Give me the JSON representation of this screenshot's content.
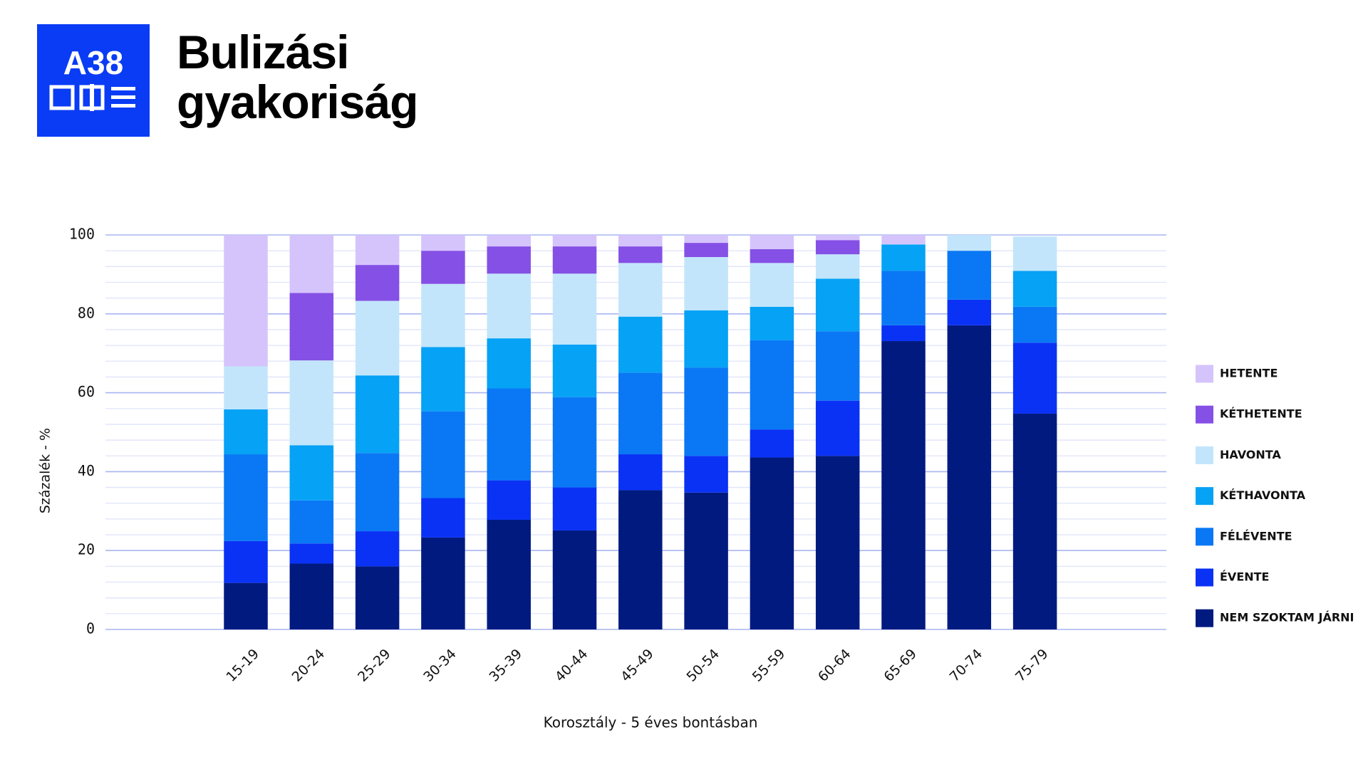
{
  "logo": "A38",
  "chart_data": {
    "type": "stacked_bar",
    "title": "Bulizási gyakoriság",
    "xlabel": "Korosztály - 5 éves bontásban",
    "ylabel": "Százalék - %",
    "categories": [
      "15-19",
      "20-24",
      "25-29",
      "30-34",
      "35-39",
      "40-44",
      "45-49",
      "50-54",
      "55-59",
      "60-64",
      "65-69",
      "70-74",
      "75-79"
    ],
    "series": [
      {
        "name": "NEM SZOKTAM JÁRNI",
        "color": "#001a80",
        "values": [
          11.8,
          16.7,
          16,
          23.3,
          27.8,
          25.1,
          35.3,
          34.7,
          43.6,
          44,
          73.1,
          77.1,
          54.7
        ]
      },
      {
        "name": "ÉVENTE",
        "color": "#0a32f5",
        "values": [
          10.6,
          5.1,
          8.9,
          10,
          10,
          10.9,
          9.1,
          9.3,
          7.1,
          14,
          4,
          6.5,
          18
        ]
      },
      {
        "name": "FÉLÉVENTE",
        "color": "#0a78f5",
        "values": [
          22,
          10.9,
          19.8,
          22,
          23.3,
          22.9,
          20.7,
          22.4,
          22.6,
          17.6,
          13.8,
          12.4,
          9.1
        ]
      },
      {
        "name": "KÉTHAVONTA",
        "color": "#06a2f5",
        "values": [
          11.4,
          14,
          19.7,
          16.3,
          12.7,
          13.3,
          14.2,
          14.5,
          8.5,
          13.3,
          6.7,
          0,
          9.1
        ]
      },
      {
        "name": "HAVONTA",
        "color": "#c2e5fb",
        "values": [
          10.9,
          21.5,
          18.9,
          16,
          16.4,
          18,
          13.6,
          13.5,
          11.1,
          6.2,
          0,
          4,
          8.7
        ]
      },
      {
        "name": "KÉTHETENTE",
        "color": "#8550e6",
        "values": [
          0,
          17.1,
          9.1,
          8.4,
          6.9,
          6.9,
          4.2,
          3.6,
          3.5,
          3.6,
          0,
          0,
          0
        ]
      },
      {
        "name": "HETENTE",
        "color": "#d5c4fc",
        "values": [
          33.3,
          14.7,
          7.6,
          4,
          2.9,
          2.9,
          2.9,
          2,
          3.6,
          1.3,
          2.4,
          0,
          0
        ]
      }
    ],
    "ylim": [
      0,
      100
    ],
    "yticks": [
      0,
      20,
      40,
      60,
      80,
      100
    ],
    "grid": true,
    "legend": "right"
  }
}
